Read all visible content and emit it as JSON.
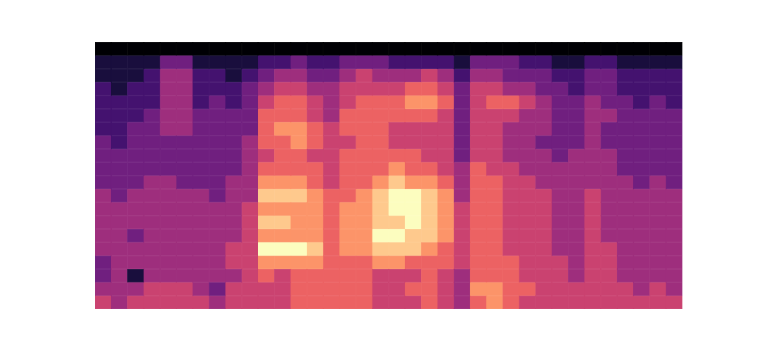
{
  "chart_data": {
    "type": "heatmap",
    "color": "magma",
    "tick_labels": false,
    "grid": false,
    "zlim": [
      0,
      9
    ],
    "cells": [
      [
        0,
        0,
        0,
        0,
        0,
        0,
        0,
        0,
        0,
        0,
        0,
        0,
        0,
        0,
        0,
        0,
        0,
        0,
        0,
        0,
        0,
        0,
        0,
        0,
        0,
        0,
        0,
        0,
        0,
        0,
        0,
        0,
        0,
        0,
        0,
        0
      ],
      [
        1,
        1,
        1,
        1,
        3,
        3,
        1,
        1,
        1,
        1,
        2,
        2,
        3,
        2,
        2,
        3,
        3,
        3,
        2,
        2,
        2,
        2,
        1,
        3,
        3,
        3,
        2,
        2,
        1,
        1,
        2,
        2,
        1,
        1,
        1,
        1
      ],
      [
        1,
        1,
        1,
        2,
        4,
        4,
        2,
        2,
        1,
        2,
        3,
        4,
        4,
        3,
        3,
        4,
        5,
        4,
        4,
        4,
        5,
        4,
        2,
        4,
        4,
        3,
        3,
        3,
        2,
        2,
        3,
        3,
        2,
        2,
        2,
        2
      ],
      [
        2,
        1,
        2,
        2,
        4,
        4,
        2,
        2,
        2,
        3,
        4,
        5,
        5,
        4,
        4,
        5,
        5,
        5,
        5,
        6,
        6,
        5,
        3,
        5,
        5,
        4,
        4,
        3,
        3,
        2,
        3,
        3,
        2,
        2,
        2,
        2
      ],
      [
        2,
        2,
        2,
        2,
        4,
        4,
        2,
        3,
        2,
        3,
        5,
        6,
        6,
        5,
        4,
        5,
        6,
        6,
        6,
        7,
        7,
        6,
        3,
        5,
        6,
        6,
        5,
        4,
        3,
        3,
        4,
        3,
        3,
        2,
        3,
        2
      ],
      [
        2,
        2,
        2,
        3,
        4,
        4,
        3,
        3,
        3,
        3,
        6,
        6,
        6,
        5,
        4,
        6,
        6,
        6,
        6,
        6,
        6,
        5,
        3,
        5,
        5,
        5,
        4,
        4,
        3,
        3,
        4,
        4,
        3,
        3,
        3,
        3
      ],
      [
        2,
        2,
        3,
        3,
        4,
        4,
        3,
        3,
        3,
        3,
        6,
        7,
        7,
        6,
        5,
        6,
        6,
        6,
        5,
        5,
        5,
        5,
        3,
        5,
        5,
        4,
        4,
        4,
        3,
        3,
        4,
        3,
        3,
        3,
        3,
        3
      ],
      [
        3,
        2,
        3,
        3,
        3,
        3,
        3,
        3,
        3,
        4,
        6,
        6,
        7,
        6,
        5,
        5,
        6,
        6,
        5,
        5,
        5,
        5,
        3,
        5,
        5,
        4,
        4,
        3,
        3,
        3,
        4,
        3,
        3,
        3,
        3,
        3
      ],
      [
        3,
        3,
        3,
        3,
        3,
        3,
        3,
        3,
        3,
        4,
        5,
        6,
        6,
        5,
        5,
        6,
        6,
        6,
        6,
        6,
        5,
        5,
        3,
        5,
        5,
        4,
        4,
        4,
        3,
        4,
        4,
        4,
        3,
        3,
        3,
        3
      ],
      [
        3,
        3,
        3,
        3,
        3,
        3,
        3,
        3,
        3,
        4,
        6,
        6,
        6,
        6,
        5,
        6,
        6,
        6,
        7,
        6,
        6,
        5,
        4,
        6,
        5,
        5,
        4,
        4,
        4,
        4,
        4,
        4,
        3,
        3,
        3,
        3
      ],
      [
        3,
        3,
        3,
        4,
        4,
        3,
        3,
        3,
        4,
        4,
        7,
        7,
        7,
        6,
        5,
        6,
        6,
        7,
        8,
        7,
        7,
        6,
        4,
        6,
        6,
        5,
        5,
        4,
        4,
        4,
        4,
        4,
        4,
        3,
        4,
        3
      ],
      [
        4,
        3,
        4,
        4,
        4,
        4,
        4,
        3,
        4,
        4,
        8,
        8,
        8,
        7,
        6,
        6,
        7,
        8,
        9,
        9,
        8,
        7,
        4,
        6,
        6,
        5,
        5,
        5,
        4,
        4,
        5,
        4,
        4,
        4,
        4,
        4
      ],
      [
        4,
        4,
        4,
        4,
        4,
        4,
        4,
        4,
        4,
        5,
        7,
        7,
        7,
        7,
        6,
        7,
        7,
        8,
        9,
        9,
        8,
        7,
        5,
        6,
        6,
        5,
        5,
        5,
        4,
        4,
        5,
        4,
        4,
        4,
        4,
        4
      ],
      [
        4,
        4,
        4,
        4,
        4,
        4,
        4,
        4,
        4,
        5,
        8,
        8,
        7,
        7,
        6,
        7,
        7,
        8,
        8,
        9,
        8,
        7,
        5,
        6,
        6,
        5,
        5,
        5,
        4,
        4,
        5,
        4,
        4,
        4,
        4,
        4
      ],
      [
        4,
        4,
        3,
        4,
        4,
        4,
        4,
        4,
        4,
        5,
        7,
        7,
        7,
        7,
        6,
        7,
        7,
        9,
        9,
        8,
        8,
        7,
        5,
        6,
        6,
        5,
        5,
        5,
        4,
        4,
        5,
        4,
        4,
        4,
        4,
        4
      ],
      [
        4,
        4,
        4,
        4,
        4,
        4,
        4,
        4,
        5,
        5,
        9,
        9,
        9,
        8,
        6,
        7,
        7,
        8,
        8,
        8,
        7,
        6,
        5,
        6,
        6,
        5,
        5,
        5,
        4,
        4,
        5,
        5,
        4,
        4,
        4,
        4
      ],
      [
        3,
        4,
        4,
        4,
        4,
        4,
        4,
        4,
        5,
        5,
        7,
        7,
        7,
        7,
        6,
        6,
        6,
        7,
        7,
        6,
        6,
        6,
        5,
        6,
        6,
        6,
        5,
        5,
        5,
        4,
        5,
        5,
        4,
        4,
        4,
        4
      ],
      [
        3,
        4,
        1,
        4,
        4,
        4,
        4,
        4,
        4,
        5,
        6,
        5,
        6,
        6,
        6,
        6,
        6,
        5,
        5,
        5,
        6,
        5,
        4,
        6,
        6,
        6,
        5,
        5,
        5,
        4,
        5,
        5,
        4,
        4,
        4,
        4
      ],
      [
        4,
        4,
        4,
        5,
        5,
        5,
        4,
        3,
        5,
        5,
        5,
        5,
        6,
        6,
        6,
        6,
        6,
        5,
        5,
        6,
        6,
        5,
        4,
        7,
        7,
        6,
        6,
        5,
        5,
        5,
        5,
        5,
        5,
        4,
        5,
        4
      ],
      [
        5,
        4,
        5,
        5,
        5,
        5,
        5,
        4,
        5,
        5,
        5,
        5,
        6,
        6,
        6,
        6,
        6,
        5,
        5,
        5,
        6,
        5,
        4,
        6,
        7,
        6,
        5,
        5,
        5,
        5,
        5,
        5,
        5,
        5,
        5,
        5
      ]
    ]
  }
}
